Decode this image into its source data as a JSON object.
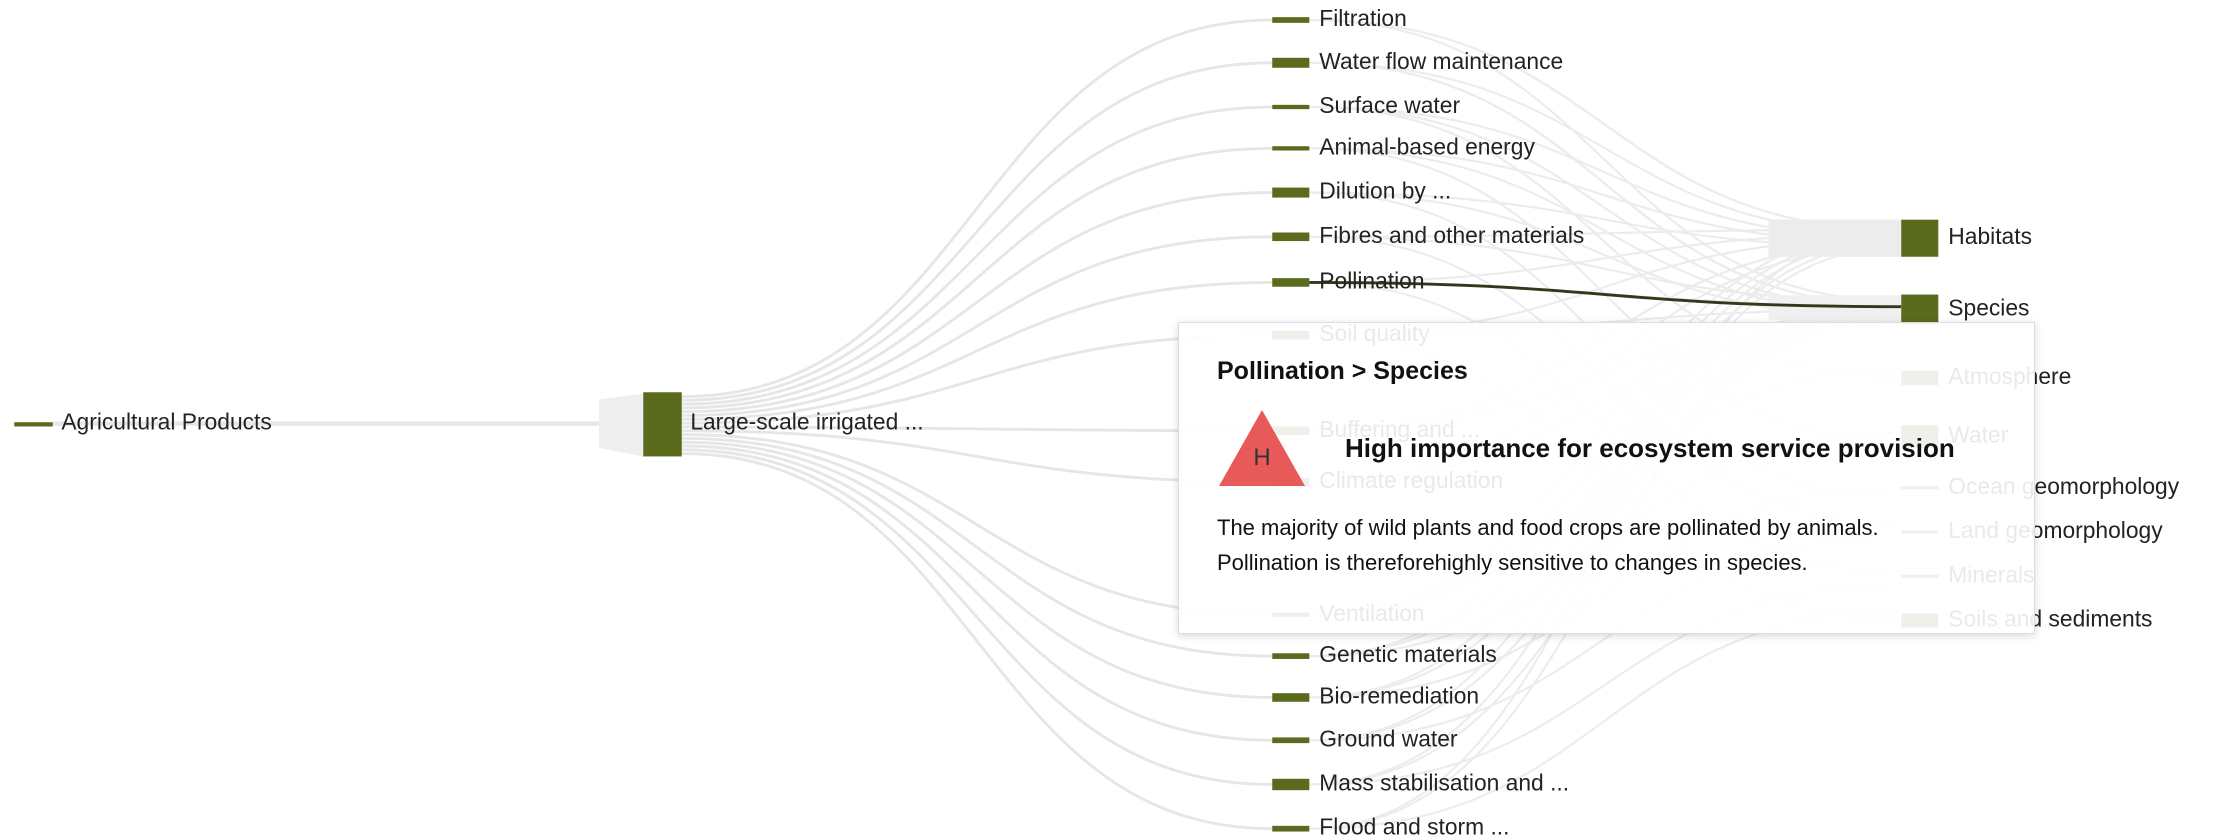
{
  "diagram": {
    "source": {
      "label": "Agricultural Products"
    },
    "hub": {
      "label": "Large-scale irrigated ..."
    },
    "services": [
      {
        "label": "Filtration"
      },
      {
        "label": "Water flow maintenance"
      },
      {
        "label": "Surface water"
      },
      {
        "label": "Animal-based energy"
      },
      {
        "label": "Dilution by ..."
      },
      {
        "label": "Fibres and other materials"
      },
      {
        "label": "Pollination"
      },
      {
        "label": "Soil quality"
      },
      {
        "label": "Buffering and ..."
      },
      {
        "label": "Climate regulation"
      },
      {
        "label": "Ventilation"
      },
      {
        "label": "Genetic materials"
      },
      {
        "label": "Bio-remediation"
      },
      {
        "label": "Ground water"
      },
      {
        "label": "Mass stabilisation and ..."
      },
      {
        "label": "Flood and storm ..."
      }
    ],
    "assets": [
      {
        "label": "Habitats"
      },
      {
        "label": "Species"
      },
      {
        "label": "Atmosphere"
      },
      {
        "label": "Water"
      },
      {
        "label": "Ocean geomorphology"
      },
      {
        "label": "Land geomorphology"
      },
      {
        "label": "Minerals"
      },
      {
        "label": "Soils and sediments"
      }
    ]
  },
  "tooltip": {
    "title": "Pollination > Species",
    "icon": "H",
    "heading": "High importance for ecosystem service provision",
    "lines": [
      "The majority of wild plants and food crops are pollinated by animals.",
      "Pollination is thereforehighly sensitive to changes in species."
    ]
  }
}
